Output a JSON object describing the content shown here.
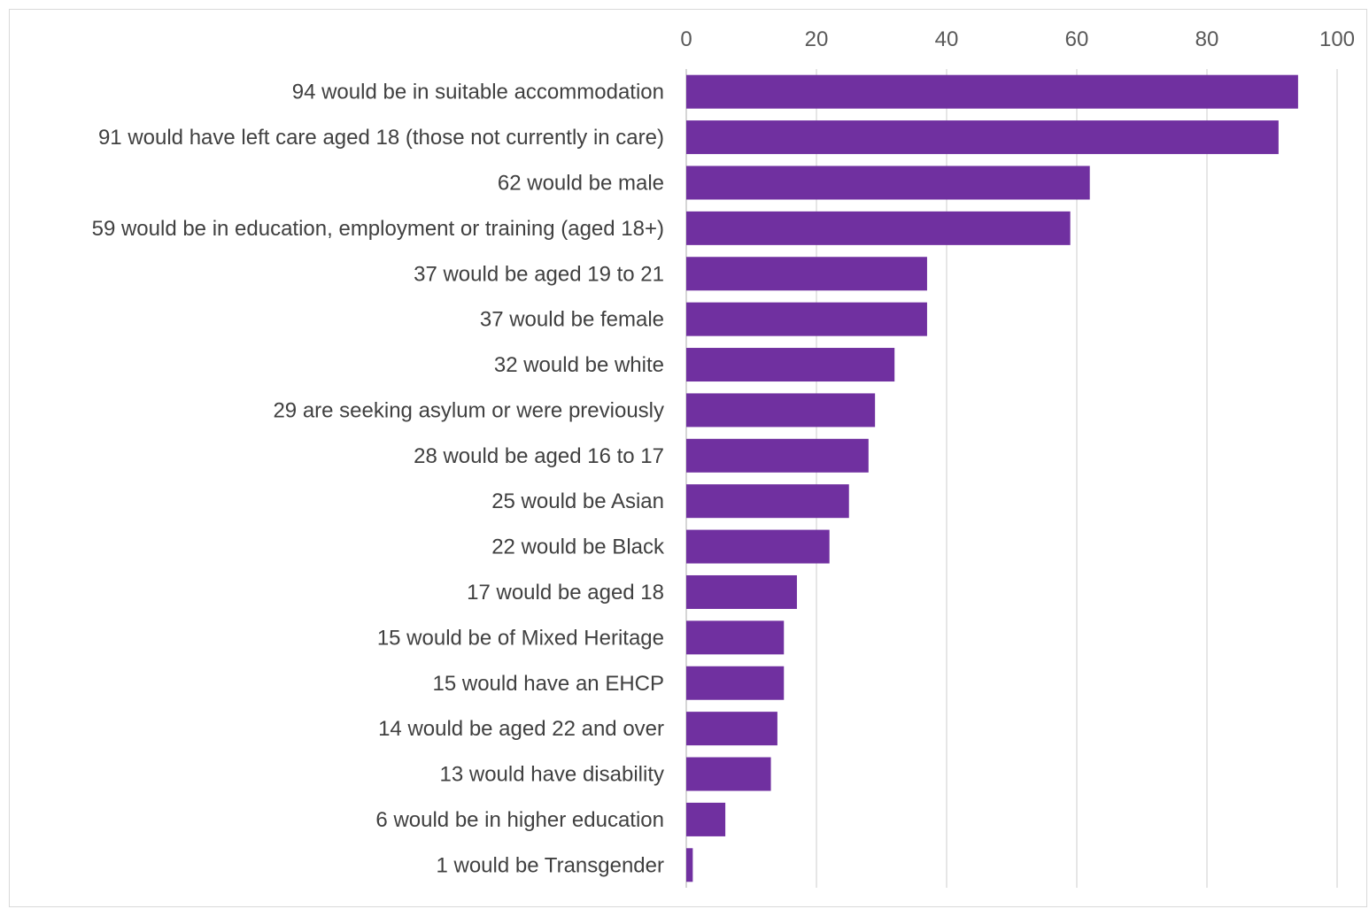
{
  "chart_data": {
    "type": "bar",
    "orientation": "horizontal",
    "title": "",
    "xlabel": "",
    "ylabel": "",
    "xlim": [
      0,
      100
    ],
    "x_ticks": [
      0,
      20,
      40,
      60,
      80,
      100
    ],
    "x_axis_position": "top",
    "grid": true,
    "legend": "none",
    "bar_color": "#7030a0",
    "categories": [
      "94 would be in suitable accommodation",
      "91 would have left care aged 18 (those not currently in care)",
      "62 would be male",
      "59 would be in education, employment or training (aged 18+)",
      "37 would be aged 19 to 21",
      "37 would be female",
      "32 would be white",
      "29 are seeking asylum or were previously",
      "28 would be aged 16 to 17",
      "25 would be Asian",
      "22 would be Black",
      "17 would be aged 18",
      "15 would be of Mixed Heritage",
      "15 would have an EHCP",
      "14 would be aged 22 and over",
      "13 would have disability",
      "6 would be in higher education",
      "1 would be Transgender"
    ],
    "values": [
      94,
      91,
      62,
      59,
      37,
      37,
      32,
      29,
      28,
      25,
      22,
      17,
      15,
      15,
      14,
      13,
      6,
      1
    ]
  }
}
